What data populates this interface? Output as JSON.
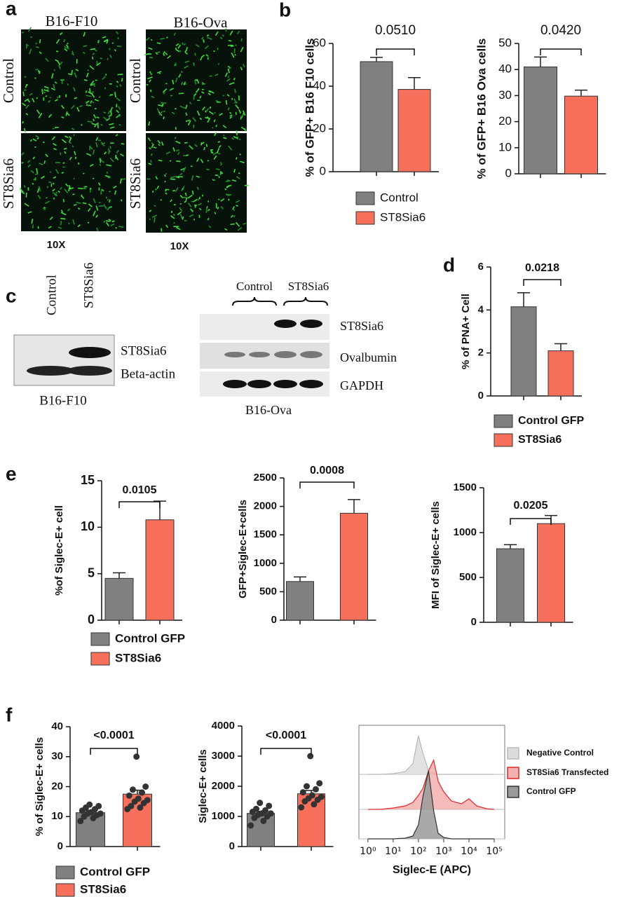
{
  "panel_labels": [
    "a",
    "b",
    "c",
    "d",
    "e",
    "f"
  ],
  "microscopy": {
    "columns": [
      "B16-F10",
      "B16-Ova"
    ],
    "rows": [
      "Control",
      "ST8Sia6",
      "Control",
      "ST8Sia6"
    ],
    "magnification": [
      "10X",
      "10X"
    ]
  },
  "blots": {
    "left": {
      "lanes": [
        "Control",
        "ST8Sia6"
      ],
      "bands": [
        "ST8Sia6",
        "Beta-actin"
      ],
      "cell_line": "B16-F10"
    },
    "right": {
      "groups": [
        "Control",
        "ST8Sia6"
      ],
      "bands": [
        "ST8Sia6",
        "Ovalbumin",
        "GAPDH"
      ],
      "cell_line": "B16-Ova"
    }
  },
  "chart_data": [
    {
      "type": "bar",
      "ylabel": "% of GFP+ B16 F10 cells",
      "categories": [
        "Control",
        "ST8Sia6"
      ],
      "values": [
        51.5,
        38.5
      ],
      "errors": [
        2,
        5.5
      ],
      "colors": [
        "#808080",
        "#f7705c"
      ],
      "ylim": [
        0,
        60
      ],
      "yticks": [
        0,
        20,
        40,
        60
      ],
      "annotation": "0.0510"
    },
    {
      "type": "bar",
      "ylabel": "% of GFP+ B16 Ova cells",
      "values": [
        41,
        29.8
      ],
      "errors": [
        3.8,
        2.3
      ],
      "colors": [
        "#808080",
        "#f7705c"
      ],
      "ylim": [
        0,
        50
      ],
      "yticks": [
        0,
        10,
        20,
        30,
        40,
        50
      ],
      "annotation": "0.0420"
    },
    {
      "type": "bar",
      "ylabel": "% of PNA+ Cell",
      "categories": [
        "Control GFP",
        "ST8Sia6"
      ],
      "values": [
        4.15,
        2.1
      ],
      "errors": [
        0.65,
        0.33
      ],
      "colors": [
        "#808080",
        "#f7705c"
      ],
      "ylim": [
        0,
        6
      ],
      "yticks": [
        0,
        2,
        4,
        6
      ],
      "annotation": "0.0218"
    },
    {
      "type": "bar",
      "ylabel": "%of Siglec-E+ cell",
      "categories": [
        "Control GFP",
        "ST8Sia6"
      ],
      "values": [
        4.5,
        10.8
      ],
      "errors": [
        0.6,
        2.0
      ],
      "colors": [
        "#808080",
        "#f7705c"
      ],
      "ylim": [
        0,
        15
      ],
      "yticks": [
        0,
        5,
        10,
        15
      ],
      "annotation": "0.0105"
    },
    {
      "type": "bar",
      "ylabel": "GFP+Siglec-E+cells",
      "values": [
        680,
        1880
      ],
      "errors": [
        80,
        240
      ],
      "colors": [
        "#808080",
        "#f7705c"
      ],
      "ylim": [
        0,
        2500
      ],
      "yticks": [
        0,
        500,
        1000,
        1500,
        2000,
        2500
      ],
      "annotation": "0.0008"
    },
    {
      "type": "bar",
      "ylabel": "MFI of Siglec-E+ cells",
      "values": [
        820,
        1100
      ],
      "errors": [
        45,
        90
      ],
      "colors": [
        "#808080",
        "#f7705c"
      ],
      "ylim": [
        0,
        1500
      ],
      "yticks": [
        0,
        500,
        1000,
        1500
      ],
      "annotation": "0.0205"
    },
    {
      "type": "bar",
      "ylabel": "% of Siglec-E+ cells",
      "categories": [
        "Control GFP",
        "ST8Sia6"
      ],
      "values": [
        11.3,
        17.5
      ],
      "errors": [
        0.8,
        1.3
      ],
      "colors": [
        "#808080",
        "#f7705c"
      ],
      "ylim": [
        0,
        40
      ],
      "yticks": [
        0,
        10,
        20,
        30,
        40
      ],
      "annotation": "<0.0001",
      "points": [
        [
          8.5,
          9.5,
          10,
          10.5,
          11,
          11,
          11.5,
          12,
          12.5,
          13,
          13.5,
          14
        ],
        [
          12.5,
          13,
          13.5,
          14.5,
          15,
          15.5,
          16,
          17,
          18,
          19,
          20,
          30
        ]
      ]
    },
    {
      "type": "bar",
      "ylabel": "Siglec-E+ cells",
      "values": [
        1100,
        1750
      ],
      "errors": [
        70,
        110
      ],
      "colors": [
        "#808080",
        "#f7705c"
      ],
      "ylim": [
        0,
        4000
      ],
      "yticks": [
        0,
        1000,
        2000,
        3000,
        4000
      ],
      "annotation": "<0.0001",
      "points": [
        [
          700,
          850,
          950,
          1000,
          1050,
          1100,
          1100,
          1150,
          1200,
          1250,
          1350,
          1450
        ],
        [
          1300,
          1400,
          1500,
          1550,
          1600,
          1650,
          1700,
          1800,
          1900,
          2000,
          2100,
          3000
        ]
      ]
    },
    {
      "type": "density",
      "xlabel": "Siglec-E (APC)",
      "log_x": true,
      "xlim": [
        0.44,
        260000
      ],
      "xticks": [
        {
          "value": 1,
          "label": "10⁰"
        },
        {
          "value": 10,
          "label": "10¹"
        },
        {
          "value": 100,
          "label": "10²"
        },
        {
          "value": 1000,
          "label": "10³"
        },
        {
          "value": 10000,
          "label": "10⁴"
        },
        {
          "value": 100000,
          "label": "10⁵"
        }
      ],
      "ylim": [
        0,
        100
      ],
      "x": [
        1,
        3,
        10,
        30,
        60,
        100,
        150,
        250,
        400,
        600,
        1000,
        2000,
        5000,
        10000,
        20000,
        50000,
        100000
      ],
      "series": [
        {
          "name": "Negative Control",
          "color": "#dcdcdc",
          "stroke": "#b8b8b8",
          "values": [
            0,
            0,
            1,
            4,
            15,
            55,
            30,
            5,
            1,
            0,
            0,
            0,
            0,
            0,
            0,
            0,
            0
          ]
        },
        {
          "name": "ST8Sia6 Transfected",
          "color": "#f5b0b0",
          "stroke": "#e02828",
          "values": [
            0,
            0,
            2,
            5,
            10,
            20,
            30,
            55,
            70,
            40,
            25,
            12,
            8,
            15,
            5,
            1,
            0
          ]
        },
        {
          "name": "Control GFP",
          "color": "#9a9a9a",
          "stroke": "#333333",
          "values": [
            0,
            0,
            0,
            1,
            4,
            20,
            60,
            97,
            40,
            8,
            2,
            0,
            0,
            0,
            0,
            0,
            0
          ]
        }
      ]
    }
  ]
}
